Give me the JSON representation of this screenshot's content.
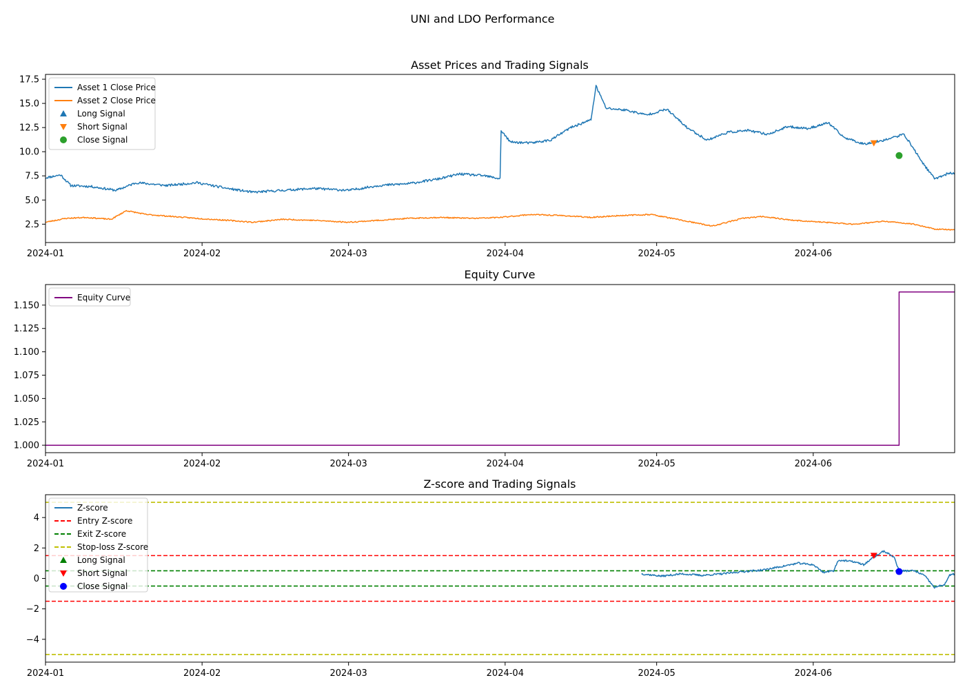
{
  "figure": {
    "suptitle": "UNI and LDO Performance"
  },
  "chart_data": [
    {
      "type": "line",
      "title": "Asset Prices and Trading Signals",
      "xlabel": "",
      "ylabel": "",
      "x_range": [
        "2024-01-01",
        "2024-06-29"
      ],
      "ylim": [
        0.6,
        18.0
      ],
      "x_ticks": [
        "2024-01",
        "2024-02",
        "2024-03",
        "2024-04",
        "2024-05",
        "2024-06"
      ],
      "y_ticks": [
        "2.5",
        "5.0",
        "7.5",
        "10.0",
        "12.5",
        "15.0",
        "17.5"
      ],
      "legend_position": "upper left",
      "series": [
        {
          "name": "Asset 1 Close Price",
          "color": "#1f77b4",
          "points": [
            [
              "2024-01-01",
              7.4
            ],
            [
              "2024-01-04",
              7.6
            ],
            [
              "2024-01-06",
              6.5
            ],
            [
              "2024-01-09",
              6.4
            ],
            [
              "2024-01-14",
              6.0
            ],
            [
              "2024-01-18",
              6.8
            ],
            [
              "2024-01-24",
              6.6
            ],
            [
              "2024-01-30",
              6.8
            ],
            [
              "2024-02-05",
              6.2
            ],
            [
              "2024-02-10",
              5.8
            ],
            [
              "2024-02-15",
              6.0
            ],
            [
              "2024-02-22",
              6.2
            ],
            [
              "2024-03-01",
              6.0
            ],
            [
              "2024-03-07",
              6.4
            ],
            [
              "2024-03-13",
              6.7
            ],
            [
              "2024-03-18",
              7.1
            ],
            [
              "2024-03-22",
              7.7
            ],
            [
              "2024-03-27",
              7.5
            ],
            [
              "2024-03-30",
              7.3
            ],
            [
              "2024-02-24",
              7.2
            ]
          ],
          "dense": [
            [
              "2024-01-01",
              7.4
            ],
            [
              "2024-01-03",
              7.7
            ],
            [
              "2024-01-05",
              7.3
            ],
            [
              "2024-01-06",
              6.5
            ],
            [
              "2024-01-10",
              6.4
            ],
            [
              "2024-01-15",
              6.0
            ],
            [
              "2024-01-18",
              6.8
            ],
            [
              "2024-01-24",
              6.6
            ],
            [
              "2024-01-30",
              6.9
            ],
            [
              "2024-02-05",
              6.3
            ],
            [
              "2024-02-09",
              5.9
            ],
            [
              "2024-02-15",
              6.0
            ],
            [
              "2024-02-20",
              6.2
            ],
            [
              "2024-02-26",
              6.0
            ],
            [
              "2024-03-02",
              6.4
            ],
            [
              "2024-03-06",
              6.7
            ],
            [
              "2024-03-10",
              7.0
            ],
            [
              "2024-03-14",
              7.6
            ],
            [
              "2024-03-18",
              7.6
            ],
            [
              "2024-02-24",
              7.2
            ]
          ]
        },
        {
          "name": "Asset 2 Close Price",
          "color": "#ff7f0e",
          "points": []
        }
      ],
      "signals": [
        {
          "name": "Long Signal",
          "marker": "triangle-up",
          "color": "#1f77b4",
          "points": []
        },
        {
          "name": "Short Signal",
          "marker": "triangle-down",
          "color": "#ff7f0e",
          "points": [
            [
              "2024-06-13",
              10.9
            ]
          ]
        },
        {
          "name": "Close Signal",
          "marker": "circle",
          "color": "#2ca02c",
          "points": [
            [
              "2024-06-18",
              9.6
            ]
          ]
        }
      ]
    },
    {
      "type": "line",
      "title": "Equity Curve",
      "xlabel": "",
      "ylabel": "",
      "x_range": [
        "2024-01-01",
        "2024-06-29"
      ],
      "ylim": [
        0.992,
        1.172
      ],
      "x_ticks": [
        "2024-01",
        "2024-02",
        "2024-03",
        "2024-04",
        "2024-05",
        "2024-06"
      ],
      "y_ticks": [
        "1.000",
        "1.025",
        "1.050",
        "1.075",
        "1.100",
        "1.125",
        "1.150"
      ],
      "legend_position": "upper left",
      "series": [
        {
          "name": "Equity Curve",
          "color": "#800080",
          "points": [
            [
              "2024-01-01",
              1.0
            ],
            [
              "2024-06-18",
              1.0
            ],
            [
              "2024-06-18",
              1.164
            ],
            [
              "2024-06-29",
              1.164
            ]
          ]
        }
      ]
    },
    {
      "type": "line",
      "title": "Z-score and Trading Signals",
      "xlabel": "",
      "ylabel": "",
      "x_range": [
        "2024-01-01",
        "2024-06-29"
      ],
      "ylim": [
        -5.5,
        5.5
      ],
      "x_ticks": [
        "2024-01",
        "2024-02",
        "2024-03",
        "2024-04",
        "2024-05",
        "2024-06"
      ],
      "y_ticks": [
        "−4",
        "−2",
        "0",
        "2",
        "4"
      ],
      "legend_position": "upper left",
      "series": [
        {
          "name": "Z-score",
          "color": "#1f77b4",
          "points": [
            [
              "2024-04-28",
              0.3
            ],
            [
              "2024-05-02",
              0.15
            ],
            [
              "2024-05-06",
              0.3
            ],
            [
              "2024-05-10",
              0.2
            ],
            [
              "2024-05-14",
              0.3
            ],
            [
              "2024-05-18",
              0.45
            ],
            [
              "2024-05-22",
              0.55
            ],
            [
              "2024-05-26",
              0.8
            ],
            [
              "2024-05-29",
              1.0
            ],
            [
              "2024-06-01",
              0.9
            ],
            [
              "2024-06-03",
              0.4
            ],
            [
              "2024-06-05",
              0.5
            ],
            [
              "2024-06-06",
              1.2
            ],
            [
              "2024-06-09",
              1.1
            ],
            [
              "2024-06-11",
              0.9
            ],
            [
              "2024-06-13",
              1.4
            ],
            [
              "2024-06-15",
              1.8
            ],
            [
              "2024-06-17",
              1.4
            ],
            [
              "2024-06-18",
              0.5
            ],
            [
              "2024-06-21",
              0.5
            ],
            [
              "2024-06-23",
              0.2
            ],
            [
              "2024-06-25",
              -0.6
            ],
            [
              "2024-06-27",
              -0.4
            ],
            [
              "2024-06-28",
              0.2
            ],
            [
              "2024-06-29",
              0.3
            ]
          ]
        },
        {
          "name": "Entry Z-score",
          "color": "#ff0000",
          "style": "dashed",
          "levels": [
            1.5,
            -1.5
          ]
        },
        {
          "name": "Exit Z-score",
          "color": "#008000",
          "style": "dashed",
          "levels": [
            0.5,
            -0.5
          ]
        },
        {
          "name": "Stop-loss Z-score",
          "color": "#bfbf00",
          "style": "dashed",
          "levels": [
            5,
            -5
          ]
        }
      ],
      "signals": [
        {
          "name": "Long Signal",
          "marker": "triangle-up",
          "color": "#008000",
          "points": []
        },
        {
          "name": "Short Signal",
          "marker": "triangle-down",
          "color": "#ff0000",
          "points": [
            [
              "2024-06-13",
              1.5
            ]
          ]
        },
        {
          "name": "Close Signal",
          "marker": "circle",
          "color": "#0000ff",
          "points": [
            [
              "2024-06-18",
              0.45
            ]
          ]
        }
      ]
    }
  ]
}
